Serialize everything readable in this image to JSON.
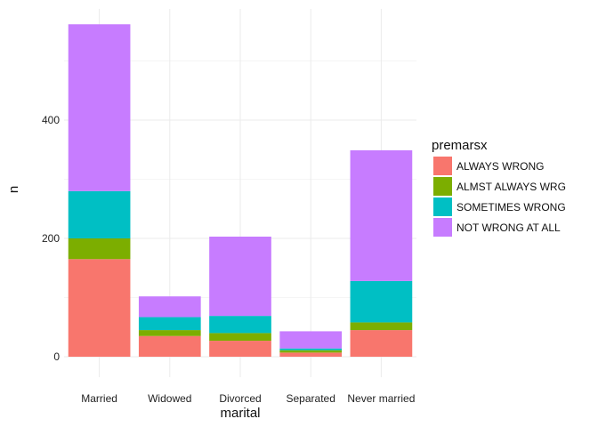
{
  "chart_data": {
    "type": "bar",
    "stacked": true,
    "categories": [
      "Married",
      "Widowed",
      "Divorced",
      "Separated",
      "Never married"
    ],
    "series": [
      {
        "name": "ALWAYS WRONG",
        "color": "#F8766D",
        "values": [
          165,
          35,
          27,
          7,
          45
        ]
      },
      {
        "name": "ALMST ALWAYS WRG",
        "color": "#7CAE00",
        "values": [
          35,
          10,
          13,
          4,
          13
        ]
      },
      {
        "name": "SOMETIMES WRONG",
        "color": "#00BFC4",
        "values": [
          80,
          22,
          29,
          3,
          70
        ]
      },
      {
        "name": "NOT WRONG AT ALL",
        "color": "#C77CFF",
        "values": [
          282,
          35,
          134,
          29,
          221
        ]
      }
    ],
    "xlabel": "marital",
    "ylabel": "n",
    "yticks": [
      0,
      200,
      400
    ],
    "ylim": [
      0,
      590
    ],
    "grid": true,
    "legend": {
      "title": "premarsx",
      "placement": "right"
    }
  }
}
